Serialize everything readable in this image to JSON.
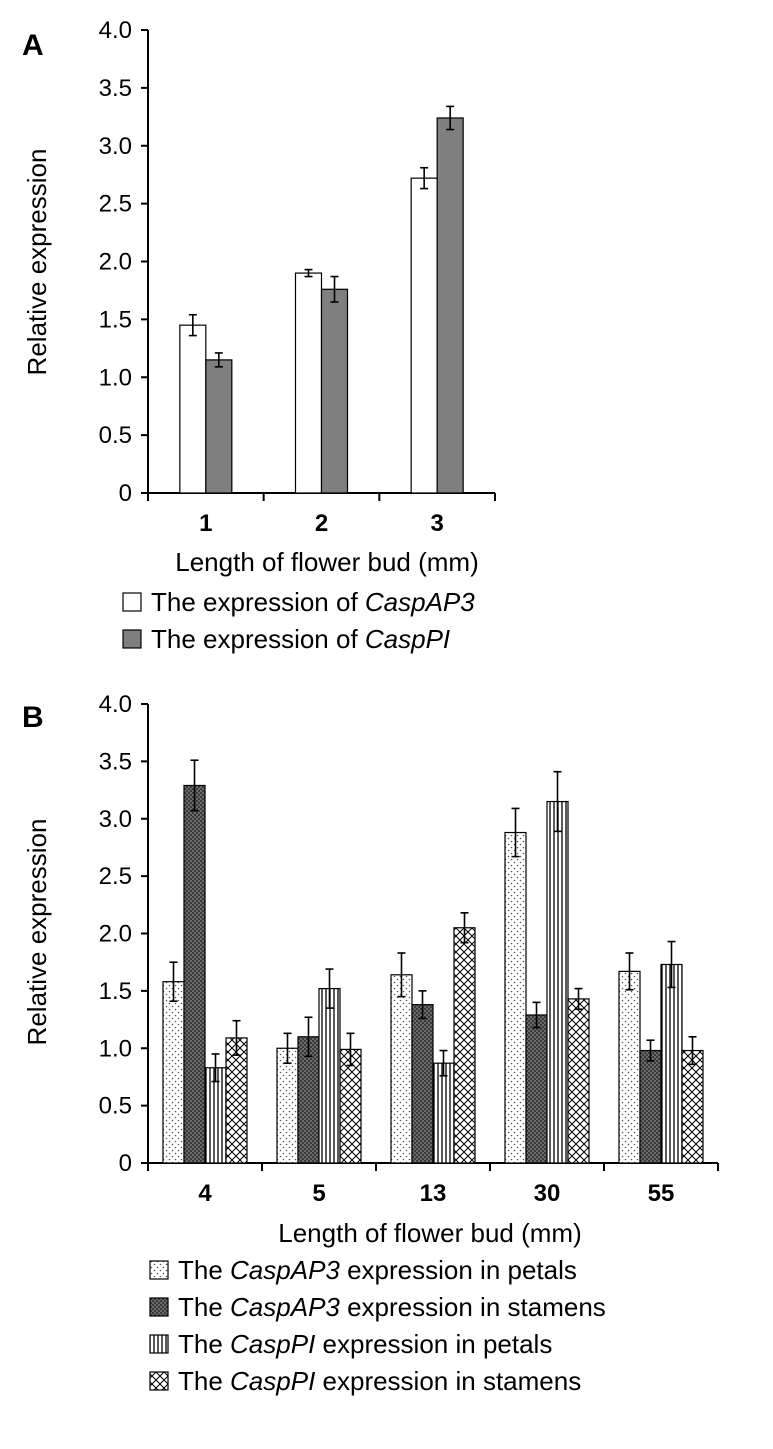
{
  "panels": [
    {
      "tag": "A",
      "chart_data": {
        "type": "bar",
        "xlabel": "Length of flower bud (mm)",
        "ylabel": "Relative expression",
        "categories": [
          "1",
          "2",
          "3"
        ],
        "ylim": [
          0,
          4.0
        ],
        "yticks": [
          "0",
          "0.5",
          "1.0",
          "1.5",
          "2.0",
          "2.5",
          "3.0",
          "3.5",
          "4.0"
        ],
        "grid": false,
        "legend_position": "bottom",
        "series": [
          {
            "name": "The expression of CaspAP3",
            "legend_plain": "The expression of ",
            "legend_italic": "CaspAP3",
            "legend_after": "",
            "fill": "white",
            "values": [
              1.45,
              1.9,
              2.72
            ],
            "errors": [
              0.09,
              0.03,
              0.09
            ]
          },
          {
            "name": "The expression of CaspPI",
            "legend_plain": "The expression of ",
            "legend_italic": "CaspPI",
            "legend_after": "",
            "fill": "gray",
            "values": [
              1.15,
              1.76,
              3.24
            ],
            "errors": [
              0.06,
              0.11,
              0.1
            ]
          }
        ]
      }
    },
    {
      "tag": "B",
      "chart_data": {
        "type": "bar",
        "xlabel": "Length of flower bud (mm)",
        "ylabel": "Relative expression",
        "categories": [
          "4",
          "5",
          "13",
          "30",
          "55"
        ],
        "ylim": [
          0,
          4.0
        ],
        "yticks": [
          "0",
          "0.5",
          "1.0",
          "1.5",
          "2.0",
          "2.5",
          "3.0",
          "3.5",
          "4.0"
        ],
        "grid": false,
        "legend_position": "bottom",
        "series": [
          {
            "name": "The CaspAP3 expression in petals",
            "legend_plain": "The ",
            "legend_italic": "CaspAP3",
            "legend_after": " expression in petals",
            "fill": "dots",
            "values": [
              1.58,
              1.0,
              1.64,
              2.88,
              1.67
            ],
            "errors": [
              0.17,
              0.13,
              0.19,
              0.21,
              0.16
            ]
          },
          {
            "name": "The CaspAP3 expression in stamens",
            "legend_plain": "The ",
            "legend_italic": "CaspAP3",
            "legend_after": " expression in stamens",
            "fill": "darkcheck",
            "values": [
              3.29,
              1.1,
              1.38,
              1.29,
              0.98
            ],
            "errors": [
              0.22,
              0.17,
              0.12,
              0.11,
              0.09
            ]
          },
          {
            "name": "The CaspPI expression in petals",
            "legend_plain": "The ",
            "legend_italic": "CaspPI",
            "legend_after": " expression in petals",
            "fill": "vlines",
            "values": [
              0.83,
              1.52,
              0.87,
              3.15,
              1.73
            ],
            "errors": [
              0.12,
              0.17,
              0.11,
              0.26,
              0.2
            ]
          },
          {
            "name": "The CaspPI expression in stamens",
            "legend_plain": "The ",
            "legend_italic": "CaspPI",
            "legend_after": " expression in stamens",
            "fill": "xhatch",
            "values": [
              1.09,
              0.99,
              2.05,
              1.43,
              0.98
            ],
            "errors": [
              0.15,
              0.14,
              0.13,
              0.09,
              0.12
            ]
          }
        ]
      }
    }
  ]
}
